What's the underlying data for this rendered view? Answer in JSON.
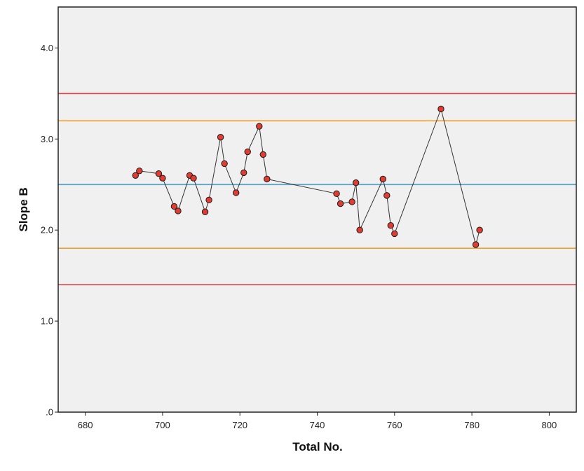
{
  "chart_data": {
    "type": "scatter",
    "xlabel": "Total No.",
    "ylabel": "Slope B",
    "xlim": [
      673,
      807
    ],
    "ylim": [
      0,
      4.45
    ],
    "x_ticks": [
      680,
      700,
      720,
      740,
      760,
      780,
      800
    ],
    "x_tick_labels": [
      "680",
      "700",
      "720",
      "740",
      "760",
      "780",
      "800"
    ],
    "y_ticks": [
      0,
      1,
      2,
      3,
      4
    ],
    "y_tick_labels": [
      ".0",
      "1.0",
      "2.0",
      "3.0",
      "4.0"
    ],
    "grid": false,
    "background": "#f0f0f0",
    "points_connected": true,
    "series": [
      {
        "marker_color": "#e03c31",
        "line_color": "#333333",
        "x": [
          693,
          694,
          699,
          700,
          703,
          704,
          707,
          708,
          711,
          712,
          715,
          716,
          719,
          721,
          722,
          725,
          726,
          727,
          745,
          746,
          749,
          750,
          751,
          757,
          758,
          759,
          760,
          772,
          781,
          782
        ],
        "y": [
          2.6,
          2.65,
          2.62,
          2.57,
          2.26,
          2.21,
          2.6,
          2.57,
          2.2,
          2.33,
          3.02,
          2.73,
          2.41,
          2.63,
          2.86,
          3.14,
          2.83,
          2.56,
          2.4,
          2.29,
          2.31,
          2.52,
          2.0,
          2.56,
          2.38,
          2.05,
          1.96,
          3.33,
          1.84,
          2.0
        ]
      }
    ],
    "reference_lines": [
      {
        "y": 3.5,
        "color": "#e0474c"
      },
      {
        "y": 3.2,
        "color": "#f0a030"
      },
      {
        "y": 2.5,
        "color": "#4fa3c9"
      },
      {
        "y": 1.8,
        "color": "#f0a030"
      },
      {
        "y": 1.4,
        "color": "#e0474c"
      }
    ]
  }
}
